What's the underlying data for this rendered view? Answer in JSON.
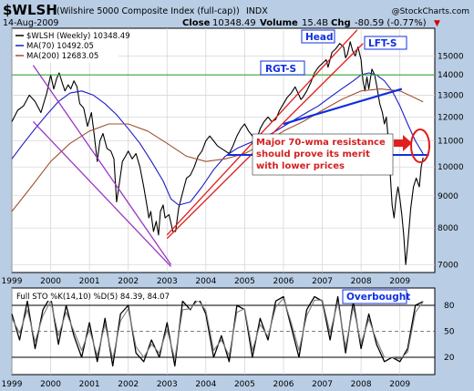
{
  "header": {
    "symbol": "$WLSH",
    "name": "(Wilshire 5000 Composite Index (full-cap))",
    "exchange": "INDX",
    "watermark": "@StockCharts.com",
    "date": "14-Aug-2009",
    "close_label": "Close",
    "close_value": "10348.49",
    "volume_label": "Volume",
    "volume_value": "15.4B",
    "chg_label": "Chg",
    "chg_value": "-80.59 (-0.77%)",
    "chg_arrow": "▼"
  },
  "colors": {
    "background": "#b9cde5",
    "panel": "#ffffff",
    "price": "#000000",
    "ma70": "#1c1cc4",
    "ma200": "#a0522d",
    "trend_purple": "#9a37c4",
    "trend_red": "#e01b1b",
    "neckline": "#1030e0",
    "resistance": "#1030e0",
    "support_green": "#3aa53a",
    "note_box": "#d42020",
    "sto_k": "#000000",
    "sto_d": "#7f7f7f"
  },
  "legend": {
    "price": "$WLSH (Weekly) 10348.49",
    "ma70": "MA(70) 10492.05",
    "ma200": "MA(200) 12683.05"
  },
  "annotations": {
    "head": "Head",
    "lft_s": "LFT-S",
    "rgt_s": "RGT-S",
    "note": "Major 70-wma resistance should prove its merit with lower prices",
    "overbought": "Overbought"
  },
  "sto_legend": "Full STO %K(14,10) %D(5) 84.39, 84.07",
  "chart_data": [
    {
      "type": "line",
      "title": "$WLSH (Wilshire 5000 Composite Index (full-cap)) INDX",
      "y_scale": "log",
      "ylim": [
        6800,
        16600
      ],
      "yticks": [
        7000,
        8000,
        9000,
        10000,
        11000,
        12000,
        13000,
        14000,
        15000
      ],
      "yticklabels": [
        "7000",
        "8000",
        "9000",
        "10000",
        "11000",
        "12000",
        "13000",
        "14000",
        "15000"
      ],
      "xlim": [
        1999.0,
        2009.9
      ],
      "xticks": [
        1999,
        2000,
        2001,
        2002,
        2003,
        2004,
        2005,
        2006,
        2007,
        2008,
        2009
      ],
      "xticklabels": [
        "1999",
        "2000",
        "2001",
        "2002",
        "2003",
        "2004",
        "2005",
        "2006",
        "2007",
        "2008",
        "2009"
      ],
      "grid": true,
      "legend_position": "top-left",
      "series": [
        {
          "name": "$WLSH (Weekly)",
          "color": "#000000",
          "x": [
            1999.0,
            1999.15,
            1999.3,
            1999.45,
            1999.6,
            1999.75,
            1999.9,
            2000.0,
            2000.08,
            2000.15,
            2000.22,
            2000.3,
            2000.37,
            2000.45,
            2000.52,
            2000.6,
            2000.68,
            2000.75,
            2000.85,
            2000.95,
            2001.05,
            2001.12,
            2001.2,
            2001.27,
            2001.35,
            2001.45,
            2001.55,
            2001.63,
            2001.7,
            2001.78,
            2001.85,
            2001.93,
            2002.0,
            2002.1,
            2002.2,
            2002.3,
            2002.4,
            2002.48,
            2002.53,
            2002.58,
            2002.65,
            2002.72,
            2002.78,
            2002.83,
            2002.9,
            2002.95,
            2003.05,
            2003.15,
            2003.22,
            2003.3,
            2003.4,
            2003.5,
            2003.6,
            2003.7,
            2003.8,
            2003.9,
            2004.0,
            2004.1,
            2004.2,
            2004.3,
            2004.4,
            2004.5,
            2004.6,
            2004.7,
            2004.8,
            2004.9,
            2005.0,
            2005.1,
            2005.2,
            2005.3,
            2005.4,
            2005.5,
            2005.6,
            2005.7,
            2005.8,
            2005.9,
            2006.0,
            2006.1,
            2006.2,
            2006.3,
            2006.4,
            2006.45,
            2006.5,
            2006.6,
            2006.7,
            2006.8,
            2006.9,
            2007.0,
            2007.1,
            2007.15,
            2007.25,
            2007.35,
            2007.45,
            2007.55,
            2007.6,
            2007.65,
            2007.72,
            2007.78,
            2007.85,
            2007.92,
            2008.0,
            2008.05,
            2008.1,
            2008.15,
            2008.2,
            2008.28,
            2008.35,
            2008.4,
            2008.48,
            2008.55,
            2008.6,
            2008.65,
            2008.7,
            2008.75,
            2008.8,
            2008.85,
            2008.9,
            2008.95,
            2009.0,
            2009.05,
            2009.1,
            2009.15,
            2009.2,
            2009.28,
            2009.35,
            2009.42,
            2009.5,
            2009.55,
            2009.6
          ],
          "values": [
            11800,
            12300,
            12500,
            13000,
            12700,
            12200,
            13100,
            14000,
            13300,
            13800,
            14100,
            13600,
            13200,
            13500,
            13300,
            13700,
            13400,
            12600,
            12400,
            11600,
            12200,
            11300,
            10200,
            11000,
            11300,
            10700,
            10600,
            10300,
            8800,
            9500,
            10200,
            10400,
            10600,
            10300,
            10500,
            10000,
            9300,
            8700,
            8300,
            8500,
            7900,
            8200,
            7800,
            8500,
            8700,
            8300,
            8400,
            7900,
            7900,
            8600,
            9100,
            9600,
            9700,
            10000,
            10400,
            10600,
            11000,
            11200,
            11000,
            10800,
            10700,
            10600,
            10500,
            10800,
            11200,
            11500,
            11700,
            11400,
            11200,
            11000,
            11500,
            11800,
            12000,
            11800,
            11900,
            12300,
            12600,
            12900,
            13100,
            13400,
            13000,
            12800,
            12900,
            13200,
            13600,
            14100,
            14400,
            14600,
            14800,
            14400,
            15200,
            15400,
            15700,
            15500,
            14900,
            15100,
            15800,
            15300,
            15000,
            15500,
            14800,
            13700,
            13200,
            13900,
            13300,
            14300,
            14000,
            13500,
            12600,
            12200,
            11700,
            12000,
            11100,
            9800,
            8700,
            8300,
            8900,
            9300,
            8900,
            8400,
            7800,
            7000,
            7500,
            8600,
            9300,
            9600,
            9300,
            10000,
            10350
          ]
        },
        {
          "name": "MA(70)",
          "color": "#1c1cc4",
          "x": [
            1999.0,
            1999.3,
            1999.6,
            1999.9,
            2000.2,
            2000.5,
            2000.8,
            2001.1,
            2001.4,
            2001.7,
            2002.0,
            2002.3,
            2002.6,
            2002.9,
            2003.1,
            2003.3,
            2003.6,
            2003.9,
            2004.2,
            2004.5,
            2004.8,
            2005.1,
            2005.4,
            2005.7,
            2006.0,
            2006.3,
            2006.6,
            2006.9,
            2007.2,
            2007.5,
            2007.8,
            2008.0,
            2008.2,
            2008.4,
            2008.6,
            2008.8,
            2009.0,
            2009.2,
            2009.4,
            2009.6
          ],
          "values": [
            10300,
            10900,
            11500,
            12100,
            12700,
            13100,
            13200,
            13000,
            12600,
            12100,
            11500,
            10900,
            10200,
            9500,
            8900,
            8700,
            8800,
            9300,
            9900,
            10400,
            10700,
            10900,
            11100,
            11300,
            11600,
            11900,
            12200,
            12500,
            12900,
            13300,
            13700,
            14000,
            14100,
            14000,
            13700,
            13200,
            12500,
            11700,
            11000,
            10492
          ]
        },
        {
          "name": "MA(200)",
          "color": "#a0522d",
          "x": [
            1999.0,
            1999.5,
            2000.0,
            2000.5,
            2001.0,
            2001.5,
            2002.0,
            2002.5,
            2003.0,
            2003.5,
            2004.0,
            2004.5,
            2005.0,
            2005.5,
            2006.0,
            2006.5,
            2007.0,
            2007.5,
            2008.0,
            2008.5,
            2009.0,
            2009.3,
            2009.6
          ],
          "values": [
            8500,
            9300,
            10200,
            10900,
            11400,
            11700,
            11700,
            11400,
            10900,
            10400,
            10200,
            10300,
            10500,
            10900,
            11400,
            11800,
            12300,
            12800,
            13200,
            13300,
            13200,
            12950,
            12683
          ]
        }
      ],
      "annotations": [
        "Head",
        "LFT-S",
        "RGT-S",
        "Major 70-wma resistance should prove its merit with lower prices"
      ]
    },
    {
      "type": "line",
      "title": "Full STO %K(14,10) %D(5) 84.39, 84.07",
      "ylim": [
        0,
        100
      ],
      "yticks": [
        20,
        50,
        80
      ],
      "yticklabels": [
        "20",
        "50",
        "80"
      ],
      "xlim": [
        1999.0,
        2009.9
      ],
      "xticks": [
        1999,
        2000,
        2001,
        2002,
        2003,
        2004,
        2005,
        2006,
        2007,
        2008,
        2009
      ],
      "xticklabels": [
        "1999",
        "2000",
        "2001",
        "2002",
        "2003",
        "2004",
        "2005",
        "2006",
        "2007",
        "2008",
        "2009"
      ],
      "grid": true,
      "series": [
        {
          "name": "%K",
          "color": "#000000",
          "x": [
            1999.0,
            1999.2,
            1999.4,
            1999.6,
            1999.8,
            2000.0,
            2000.2,
            2000.4,
            2000.6,
            2000.8,
            2001.0,
            2001.2,
            2001.4,
            2001.6,
            2001.8,
            2002.0,
            2002.2,
            2002.4,
            2002.6,
            2002.8,
            2003.0,
            2003.2,
            2003.4,
            2003.6,
            2003.8,
            2004.0,
            2004.2,
            2004.4,
            2004.6,
            2004.8,
            2005.0,
            2005.2,
            2005.4,
            2005.6,
            2005.8,
            2006.0,
            2006.2,
            2006.4,
            2006.6,
            2006.8,
            2007.0,
            2007.2,
            2007.4,
            2007.6,
            2007.8,
            2008.0,
            2008.2,
            2008.4,
            2008.6,
            2008.8,
            2009.0,
            2009.2,
            2009.4,
            2009.6
          ],
          "values": [
            70,
            40,
            85,
            30,
            75,
            90,
            35,
            80,
            45,
            20,
            60,
            15,
            65,
            10,
            70,
            80,
            25,
            15,
            40,
            20,
            60,
            10,
            85,
            75,
            90,
            70,
            20,
            45,
            15,
            80,
            75,
            20,
            65,
            40,
            85,
            90,
            55,
            20,
            75,
            90,
            85,
            40,
            90,
            25,
            85,
            30,
            70,
            35,
            15,
            20,
            15,
            30,
            80,
            84.39
          ]
        },
        {
          "name": "%D",
          "color": "#7f7f7f",
          "x": [
            1999.0,
            1999.2,
            1999.4,
            1999.6,
            1999.8,
            2000.0,
            2000.2,
            2000.4,
            2000.6,
            2000.8,
            2001.0,
            2001.2,
            2001.4,
            2001.6,
            2001.8,
            2002.0,
            2002.2,
            2002.4,
            2002.6,
            2002.8,
            2003.0,
            2003.2,
            2003.4,
            2003.6,
            2003.8,
            2004.0,
            2004.2,
            2004.4,
            2004.6,
            2004.8,
            2005.0,
            2005.2,
            2005.4,
            2005.6,
            2005.8,
            2006.0,
            2006.2,
            2006.4,
            2006.6,
            2006.8,
            2007.0,
            2007.2,
            2007.4,
            2007.6,
            2007.8,
            2008.0,
            2008.2,
            2008.4,
            2008.6,
            2008.8,
            2009.0,
            2009.2,
            2009.4,
            2009.6
          ],
          "values": [
            65,
            48,
            75,
            38,
            68,
            85,
            45,
            72,
            50,
            28,
            52,
            22,
            58,
            18,
            62,
            76,
            32,
            20,
            35,
            25,
            52,
            18,
            75,
            76,
            86,
            74,
            28,
            40,
            22,
            72,
            76,
            28,
            58,
            44,
            78,
            88,
            60,
            28,
            68,
            86,
            86,
            48,
            84,
            32,
            78,
            36,
            64,
            40,
            20,
            20,
            18,
            26,
            72,
            84.07
          ]
        }
      ],
      "annotations": [
        "Overbought"
      ]
    }
  ]
}
